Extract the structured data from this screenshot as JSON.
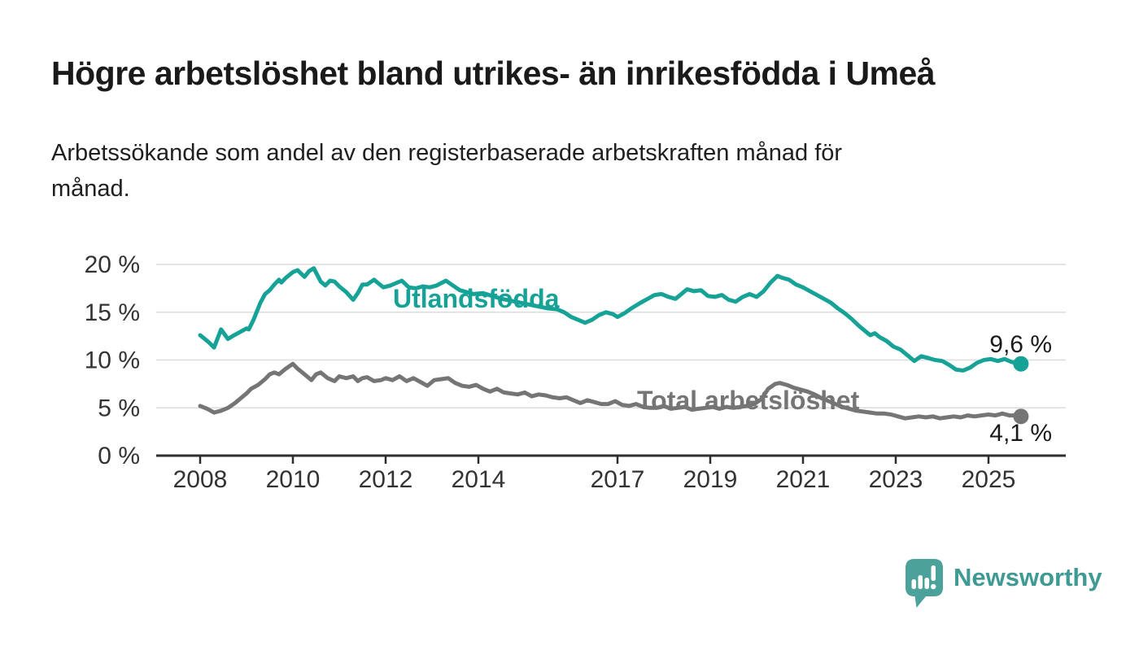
{
  "header": {
    "title": "Högre arbetslöshet bland utrikes- än inrikesfödda i Umeå",
    "subtitle": "Arbetssökande som andel av den registerbaserade arbetskraften månad för månad.",
    "subtitle_lines": [
      "Arbetssökande som andel av den registerbaserade arbetskraften månad för",
      "månad."
    ]
  },
  "footer": {
    "brand": "Newsworthy",
    "logo_icon": "bar-chart-speech-bubble-icon"
  },
  "colors": {
    "teal_series": "#16a296",
    "gray_series": "#757575",
    "grid": "#dcdcdc",
    "axis": "#2d2d2d",
    "tick_label": "#333333",
    "value_label": "#1a1a1a",
    "logo_icon": "#4ba29a",
    "logo_text": "#3e9a93"
  },
  "chart_data": {
    "type": "line",
    "title": "Högre arbetslöshet bland utrikes- än inrikesfödda i Umeå",
    "subtitle": "Arbetssökande som andel av den registerbaserade arbetskraften månad för månad.",
    "unit": "%",
    "grid": "horizontal",
    "legend_position": "inline-labels",
    "ylim": [
      0,
      21.5
    ],
    "xlim": [
      2007.1,
      2026.7
    ],
    "y_ticks": [
      0,
      5,
      10,
      15,
      20
    ],
    "y_tick_labels": [
      "0 %",
      "5 %",
      "10 %",
      "15 %",
      "20 %"
    ],
    "x_ticks": [
      2008,
      2010,
      2012,
      2014,
      2017,
      2019,
      2021,
      2023,
      2025
    ],
    "x_tick_labels": [
      "2008",
      "2010",
      "2012",
      "2014",
      "2017",
      "2019",
      "2021",
      "2023",
      "2025"
    ],
    "series": [
      {
        "name": "Utlandsfödda",
        "color": "#16a296",
        "end_value": 9.6,
        "end_label": "9,6 %",
        "points": [
          [
            2008.0,
            12.6
          ],
          [
            2008.1,
            12.2
          ],
          [
            2008.2,
            11.8
          ],
          [
            2008.3,
            11.3
          ],
          [
            2008.45,
            13.2
          ],
          [
            2008.6,
            12.2
          ],
          [
            2008.7,
            12.5
          ],
          [
            2008.85,
            12.9
          ],
          [
            2009.0,
            13.3
          ],
          [
            2009.05,
            13.2
          ],
          [
            2009.15,
            14.2
          ],
          [
            2009.3,
            16.0
          ],
          [
            2009.4,
            16.9
          ],
          [
            2009.5,
            17.3
          ],
          [
            2009.6,
            17.9
          ],
          [
            2009.7,
            18.4
          ],
          [
            2009.75,
            18.1
          ],
          [
            2009.85,
            18.6
          ],
          [
            2010.0,
            19.2
          ],
          [
            2010.1,
            19.4
          ],
          [
            2010.25,
            18.7
          ],
          [
            2010.35,
            19.3
          ],
          [
            2010.45,
            19.6
          ],
          [
            2010.6,
            18.2
          ],
          [
            2010.7,
            17.8
          ],
          [
            2010.8,
            18.3
          ],
          [
            2010.9,
            18.2
          ],
          [
            2011.0,
            17.7
          ],
          [
            2011.15,
            17.1
          ],
          [
            2011.3,
            16.3
          ],
          [
            2011.4,
            17.0
          ],
          [
            2011.5,
            17.9
          ],
          [
            2011.6,
            17.9
          ],
          [
            2011.75,
            18.4
          ],
          [
            2011.85,
            18.0
          ],
          [
            2011.95,
            17.6
          ],
          [
            2012.1,
            17.8
          ],
          [
            2012.2,
            18.0
          ],
          [
            2012.35,
            18.3
          ],
          [
            2012.5,
            17.6
          ],
          [
            2012.65,
            17.5
          ],
          [
            2012.8,
            17.7
          ],
          [
            2012.95,
            17.6
          ],
          [
            2013.1,
            17.8
          ],
          [
            2013.3,
            18.3
          ],
          [
            2013.45,
            17.8
          ],
          [
            2013.6,
            17.3
          ],
          [
            2013.75,
            17.1
          ],
          [
            2013.9,
            16.9
          ],
          [
            2014.1,
            17.0
          ],
          [
            2014.3,
            16.7
          ],
          [
            2014.5,
            16.4
          ],
          [
            2014.7,
            16.2
          ],
          [
            2014.9,
            16.0
          ],
          [
            2015.1,
            15.8
          ],
          [
            2015.3,
            15.6
          ],
          [
            2015.5,
            15.4
          ],
          [
            2015.7,
            15.3
          ],
          [
            2015.85,
            15.0
          ],
          [
            2016.0,
            14.5
          ],
          [
            2016.15,
            14.2
          ],
          [
            2016.3,
            13.9
          ],
          [
            2016.45,
            14.2
          ],
          [
            2016.6,
            14.7
          ],
          [
            2016.75,
            15.0
          ],
          [
            2016.9,
            14.8
          ],
          [
            2017.0,
            14.5
          ],
          [
            2017.15,
            14.9
          ],
          [
            2017.3,
            15.4
          ],
          [
            2017.5,
            16.0
          ],
          [
            2017.65,
            16.4
          ],
          [
            2017.8,
            16.8
          ],
          [
            2017.95,
            16.9
          ],
          [
            2018.1,
            16.6
          ],
          [
            2018.25,
            16.4
          ],
          [
            2018.4,
            17.0
          ],
          [
            2018.5,
            17.4
          ],
          [
            2018.65,
            17.2
          ],
          [
            2018.8,
            17.3
          ],
          [
            2018.95,
            16.7
          ],
          [
            2019.1,
            16.6
          ],
          [
            2019.25,
            16.8
          ],
          [
            2019.4,
            16.3
          ],
          [
            2019.55,
            16.1
          ],
          [
            2019.7,
            16.6
          ],
          [
            2019.85,
            16.9
          ],
          [
            2020.0,
            16.6
          ],
          [
            2020.15,
            17.2
          ],
          [
            2020.3,
            18.1
          ],
          [
            2020.45,
            18.8
          ],
          [
            2020.55,
            18.6
          ],
          [
            2020.7,
            18.4
          ],
          [
            2020.85,
            17.9
          ],
          [
            2021.0,
            17.6
          ],
          [
            2021.15,
            17.2
          ],
          [
            2021.3,
            16.8
          ],
          [
            2021.45,
            16.4
          ],
          [
            2021.6,
            16.0
          ],
          [
            2021.75,
            15.4
          ],
          [
            2021.9,
            14.9
          ],
          [
            2022.05,
            14.3
          ],
          [
            2022.2,
            13.6
          ],
          [
            2022.35,
            13.0
          ],
          [
            2022.45,
            12.6
          ],
          [
            2022.55,
            12.8
          ],
          [
            2022.65,
            12.4
          ],
          [
            2022.8,
            12.0
          ],
          [
            2022.95,
            11.4
          ],
          [
            2023.1,
            11.1
          ],
          [
            2023.25,
            10.5
          ],
          [
            2023.4,
            9.9
          ],
          [
            2023.55,
            10.4
          ],
          [
            2023.7,
            10.2
          ],
          [
            2023.85,
            10.0
          ],
          [
            2024.0,
            9.9
          ],
          [
            2024.15,
            9.5
          ],
          [
            2024.3,
            9.0
          ],
          [
            2024.45,
            8.9
          ],
          [
            2024.6,
            9.2
          ],
          [
            2024.75,
            9.7
          ],
          [
            2024.9,
            10.0
          ],
          [
            2025.05,
            10.1
          ],
          [
            2025.2,
            9.9
          ],
          [
            2025.35,
            10.1
          ],
          [
            2025.5,
            9.8
          ],
          [
            2025.6,
            9.7
          ],
          [
            2025.7,
            9.6
          ]
        ]
      },
      {
        "name": "Total arbetslöshet",
        "color": "#757575",
        "end_value": 4.1,
        "end_label": "4,1 %",
        "points": [
          [
            2008.0,
            5.2
          ],
          [
            2008.15,
            4.9
          ],
          [
            2008.3,
            4.5
          ],
          [
            2008.45,
            4.7
          ],
          [
            2008.6,
            5.0
          ],
          [
            2008.75,
            5.5
          ],
          [
            2008.9,
            6.1
          ],
          [
            2009.0,
            6.5
          ],
          [
            2009.1,
            7.0
          ],
          [
            2009.25,
            7.4
          ],
          [
            2009.4,
            8.0
          ],
          [
            2009.5,
            8.5
          ],
          [
            2009.6,
            8.7
          ],
          [
            2009.7,
            8.5
          ],
          [
            2009.85,
            9.1
          ],
          [
            2010.0,
            9.6
          ],
          [
            2010.1,
            9.1
          ],
          [
            2010.25,
            8.5
          ],
          [
            2010.4,
            7.9
          ],
          [
            2010.5,
            8.5
          ],
          [
            2010.6,
            8.7
          ],
          [
            2010.75,
            8.1
          ],
          [
            2010.9,
            7.8
          ],
          [
            2011.0,
            8.3
          ],
          [
            2011.15,
            8.1
          ],
          [
            2011.3,
            8.3
          ],
          [
            2011.4,
            7.8
          ],
          [
            2011.5,
            8.1
          ],
          [
            2011.6,
            8.2
          ],
          [
            2011.75,
            7.8
          ],
          [
            2011.9,
            7.9
          ],
          [
            2012.0,
            8.1
          ],
          [
            2012.15,
            7.9
          ],
          [
            2012.3,
            8.3
          ],
          [
            2012.45,
            7.8
          ],
          [
            2012.6,
            8.1
          ],
          [
            2012.75,
            7.7
          ],
          [
            2012.9,
            7.3
          ],
          [
            2013.05,
            7.9
          ],
          [
            2013.2,
            8.0
          ],
          [
            2013.35,
            8.1
          ],
          [
            2013.5,
            7.6
          ],
          [
            2013.65,
            7.3
          ],
          [
            2013.8,
            7.2
          ],
          [
            2013.95,
            7.4
          ],
          [
            2014.1,
            7.0
          ],
          [
            2014.25,
            6.7
          ],
          [
            2014.4,
            7.0
          ],
          [
            2014.55,
            6.6
          ],
          [
            2014.7,
            6.5
          ],
          [
            2014.85,
            6.4
          ],
          [
            2015.0,
            6.6
          ],
          [
            2015.15,
            6.2
          ],
          [
            2015.3,
            6.4
          ],
          [
            2015.45,
            6.3
          ],
          [
            2015.6,
            6.1
          ],
          [
            2015.75,
            6.0
          ],
          [
            2015.9,
            6.1
          ],
          [
            2016.05,
            5.8
          ],
          [
            2016.2,
            5.5
          ],
          [
            2016.35,
            5.8
          ],
          [
            2016.5,
            5.6
          ],
          [
            2016.65,
            5.4
          ],
          [
            2016.8,
            5.4
          ],
          [
            2016.95,
            5.7
          ],
          [
            2017.1,
            5.3
          ],
          [
            2017.25,
            5.2
          ],
          [
            2017.4,
            5.4
          ],
          [
            2017.55,
            5.1
          ],
          [
            2017.7,
            5.0
          ],
          [
            2017.85,
            5.0
          ],
          [
            2018.0,
            5.2
          ],
          [
            2018.15,
            4.9
          ],
          [
            2018.3,
            5.0
          ],
          [
            2018.45,
            5.1
          ],
          [
            2018.6,
            4.8
          ],
          [
            2018.75,
            4.9
          ],
          [
            2018.9,
            5.0
          ],
          [
            2019.05,
            5.1
          ],
          [
            2019.2,
            4.9
          ],
          [
            2019.35,
            5.1
          ],
          [
            2019.5,
            5.0
          ],
          [
            2019.65,
            5.1
          ],
          [
            2019.8,
            5.2
          ],
          [
            2019.95,
            5.4
          ],
          [
            2020.1,
            5.9
          ],
          [
            2020.25,
            7.0
          ],
          [
            2020.4,
            7.5
          ],
          [
            2020.5,
            7.6
          ],
          [
            2020.65,
            7.4
          ],
          [
            2020.8,
            7.1
          ],
          [
            2020.95,
            6.9
          ],
          [
            2021.1,
            6.7
          ],
          [
            2021.25,
            6.4
          ],
          [
            2021.4,
            6.0
          ],
          [
            2021.55,
            5.7
          ],
          [
            2021.7,
            5.4
          ],
          [
            2021.85,
            5.1
          ],
          [
            2022.0,
            4.9
          ],
          [
            2022.15,
            4.7
          ],
          [
            2022.3,
            4.6
          ],
          [
            2022.45,
            4.5
          ],
          [
            2022.6,
            4.4
          ],
          [
            2022.75,
            4.4
          ],
          [
            2022.9,
            4.3
          ],
          [
            2023.05,
            4.1
          ],
          [
            2023.2,
            3.9
          ],
          [
            2023.35,
            4.0
          ],
          [
            2023.5,
            4.1
          ],
          [
            2023.65,
            4.0
          ],
          [
            2023.8,
            4.1
          ],
          [
            2023.95,
            3.9
          ],
          [
            2024.1,
            4.0
          ],
          [
            2024.25,
            4.1
          ],
          [
            2024.4,
            4.0
          ],
          [
            2024.55,
            4.2
          ],
          [
            2024.7,
            4.1
          ],
          [
            2024.85,
            4.2
          ],
          [
            2025.0,
            4.3
          ],
          [
            2025.15,
            4.2
          ],
          [
            2025.3,
            4.4
          ],
          [
            2025.45,
            4.2
          ],
          [
            2025.6,
            4.2
          ],
          [
            2025.7,
            4.1
          ]
        ]
      }
    ]
  }
}
